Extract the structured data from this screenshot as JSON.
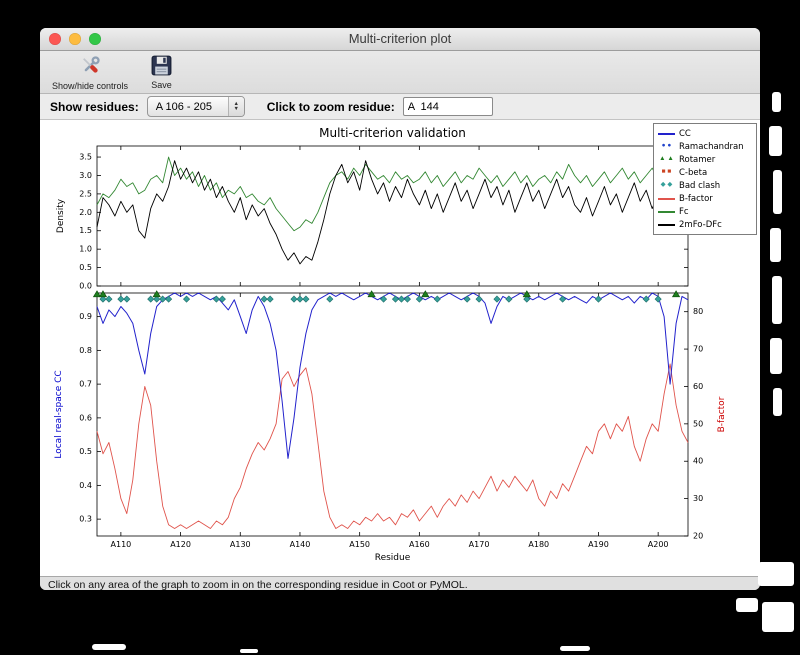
{
  "window": {
    "title": "Multi-criterion plot",
    "toolbar": {
      "show_hide_label": "Show/hide controls",
      "save_label": "Save"
    },
    "controls": {
      "show_residues_label": "Show residues:",
      "residue_range_value": "A 106 - 205",
      "zoom_residue_label": "Click to zoom residue:",
      "zoom_residue_value": "A  144"
    },
    "status_bar": "Click on any area of the graph to zoom in on the corresponding residue in Coot or PyMOL."
  },
  "chart_data": {
    "type": "line",
    "title": "Multi-criterion validation",
    "x_label": "Residue",
    "x_range": [
      106,
      205
    ],
    "x_ticks": [
      {
        "label": "A110",
        "residue": 110
      },
      {
        "label": "A120",
        "residue": 120
      },
      {
        "label": "A130",
        "residue": 130
      },
      {
        "label": "A140",
        "residue": 140
      },
      {
        "label": "A150",
        "residue": 150
      },
      {
        "label": "A160",
        "residue": 160
      },
      {
        "label": "A170",
        "residue": 170
      },
      {
        "label": "A180",
        "residue": 180
      },
      {
        "label": "A190",
        "residue": 190
      },
      {
        "label": "A200",
        "residue": 200
      }
    ],
    "top": {
      "y_label": "Density",
      "ylim": [
        0,
        3.8
      ],
      "y_ticks": [
        0.0,
        0.5,
        1.0,
        1.5,
        2.0,
        2.5,
        3.0,
        3.5
      ],
      "series": [
        {
          "name": "Fc",
          "color": "#338833",
          "values": [
            2.2,
            2.5,
            2.4,
            2.6,
            2.9,
            2.7,
            2.8,
            2.5,
            2.6,
            2.9,
            3.0,
            2.8,
            3.5,
            3.0,
            3.2,
            2.9,
            3.1,
            2.7,
            3.0,
            2.6,
            2.8,
            2.4,
            2.6,
            2.5,
            2.7,
            2.4,
            2.5,
            2.3,
            2.2,
            2.4,
            2.1,
            1.9,
            1.7,
            1.5,
            1.6,
            1.8,
            1.7,
            2.0,
            2.4,
            2.8,
            3.0,
            3.1,
            2.9,
            3.2,
            3.0,
            3.3,
            3.1,
            2.9,
            3.0,
            2.8,
            3.1,
            2.9,
            3.0,
            2.8,
            2.9,
            3.1,
            2.8,
            3.0,
            2.7,
            2.9,
            3.1,
            2.8,
            3.0,
            2.9,
            3.2,
            3.0,
            2.8,
            3.0,
            2.7,
            2.9,
            3.1,
            2.8,
            3.0,
            2.7,
            2.9,
            3.0,
            2.8,
            3.1,
            2.9,
            3.3,
            3.0,
            2.8,
            3.0,
            2.7,
            2.9,
            3.1,
            2.8,
            3.0,
            3.2,
            2.9,
            3.1,
            2.8,
            3.0,
            3.2,
            2.9,
            3.1,
            2.8,
            3.0,
            2.7,
            2.9
          ]
        },
        {
          "name": "2mFo-DFc",
          "color": "#000000",
          "values": [
            1.6,
            2.4,
            2.2,
            1.9,
            2.3,
            2.0,
            2.2,
            1.5,
            1.3,
            2.1,
            2.5,
            2.3,
            2.7,
            3.4,
            2.9,
            3.2,
            2.8,
            3.1,
            2.6,
            2.9,
            2.4,
            2.7,
            2.3,
            2.0,
            2.4,
            1.8,
            2.2,
            1.9,
            2.1,
            1.7,
            1.4,
            1.0,
            0.7,
            0.9,
            0.6,
            0.8,
            0.7,
            1.2,
            1.8,
            2.5,
            3.0,
            3.3,
            2.8,
            3.1,
            2.6,
            3.4,
            2.9,
            2.5,
            2.8,
            2.3,
            2.7,
            2.4,
            2.9,
            2.5,
            2.2,
            2.6,
            2.1,
            2.5,
            2.0,
            2.4,
            2.8,
            2.3,
            2.6,
            2.1,
            2.5,
            2.9,
            2.4,
            2.7,
            2.2,
            2.6,
            2.0,
            2.4,
            2.8,
            2.3,
            2.6,
            2.1,
            2.5,
            2.9,
            2.4,
            2.7,
            2.2,
            2.0,
            2.4,
            1.9,
            2.3,
            2.7,
            2.2,
            2.5,
            2.0,
            2.4,
            2.8,
            2.3,
            2.6,
            2.1,
            2.5,
            2.2,
            2.6,
            2.0,
            2.4,
            2.1
          ]
        }
      ]
    },
    "bottom": {
      "left_y_label": "Local real-space CC",
      "left_label_color": "#0000cc",
      "left_ylim": [
        0.25,
        0.97
      ],
      "left_y_ticks": [
        0.3,
        0.4,
        0.5,
        0.6,
        0.7,
        0.8,
        0.9
      ],
      "right_y_label": "B-factor",
      "right_label_color": "#cc0000",
      "right_ylim": [
        20,
        85
      ],
      "right_y_ticks": [
        20,
        30,
        40,
        50,
        60,
        70,
        80
      ],
      "cc": {
        "name": "CC",
        "color": "#2222cc",
        "values": [
          0.93,
          0.88,
          0.92,
          0.9,
          0.93,
          0.91,
          0.88,
          0.8,
          0.73,
          0.85,
          0.93,
          0.95,
          0.96,
          0.97,
          0.96,
          0.97,
          0.96,
          0.97,
          0.96,
          0.95,
          0.96,
          0.94,
          0.92,
          0.95,
          0.9,
          0.85,
          0.92,
          0.96,
          0.93,
          0.88,
          0.8,
          0.65,
          0.48,
          0.6,
          0.75,
          0.85,
          0.92,
          0.95,
          0.96,
          0.97,
          0.96,
          0.97,
          0.96,
          0.95,
          0.96,
          0.97,
          0.96,
          0.95,
          0.96,
          0.97,
          0.96,
          0.95,
          0.96,
          0.97,
          0.96,
          0.95,
          0.96,
          0.95,
          0.96,
          0.97,
          0.96,
          0.95,
          0.96,
          0.97,
          0.96,
          0.94,
          0.88,
          0.93,
          0.96,
          0.95,
          0.96,
          0.97,
          0.96,
          0.95,
          0.96,
          0.95,
          0.96,
          0.97,
          0.96,
          0.95,
          0.96,
          0.95,
          0.94,
          0.96,
          0.95,
          0.96,
          0.97,
          0.96,
          0.95,
          0.96,
          0.94,
          0.96,
          0.95,
          0.97,
          0.96,
          0.9,
          0.7,
          0.88,
          0.96,
          0.95
        ]
      },
      "bfactor": {
        "name": "B-factor",
        "color": "#e0544c",
        "values": [
          48,
          42,
          45,
          38,
          30,
          26,
          35,
          50,
          60,
          55,
          40,
          28,
          23,
          22,
          23,
          22,
          23,
          24,
          23,
          22,
          24,
          23,
          25,
          30,
          33,
          38,
          42,
          45,
          43,
          46,
          50,
          62,
          64,
          60,
          63,
          65,
          58,
          45,
          32,
          25,
          22,
          23,
          22,
          24,
          23,
          25,
          24,
          26,
          24,
          25,
          23,
          26,
          25,
          27,
          24,
          26,
          28,
          25,
          28,
          30,
          28,
          31,
          29,
          32,
          30,
          33,
          36,
          32,
          35,
          33,
          36,
          34,
          32,
          35,
          30,
          28,
          32,
          30,
          34,
          32,
          36,
          40,
          44,
          42,
          48,
          50,
          46,
          50,
          48,
          52,
          44,
          40,
          46,
          50,
          48,
          58,
          66,
          55,
          48,
          45
        ]
      },
      "markers": {
        "rotamer": {
          "color": "#1e7d1e",
          "residues": [
            106,
            107,
            116,
            152,
            161,
            178,
            203
          ]
        },
        "bad_clash": {
          "color": "#35a09a",
          "cc_level": 0.952,
          "residues": [
            107,
            108,
            110,
            111,
            115,
            116,
            117,
            118,
            121,
            126,
            127,
            134,
            135,
            139,
            140,
            141,
            145,
            154,
            156,
            157,
            158,
            160,
            163,
            168,
            170,
            173,
            175,
            178,
            184,
            190,
            198,
            200
          ]
        }
      }
    },
    "legend": [
      {
        "label": "CC",
        "type": "line",
        "color": "#2222cc"
      },
      {
        "label": "Ramachandran",
        "type": "circles",
        "color": "#2244cc"
      },
      {
        "label": "Rotamer",
        "type": "triangles",
        "color": "#1e7d1e"
      },
      {
        "label": "C-beta",
        "type": "squares",
        "color": "#cc4422"
      },
      {
        "label": "Bad clash",
        "type": "diamonds",
        "color": "#35a09a"
      },
      {
        "label": "B-factor",
        "type": "line",
        "color": "#e0544c"
      },
      {
        "label": "Fc",
        "type": "line",
        "color": "#338833"
      },
      {
        "label": "2mFo-DFc",
        "type": "line",
        "color": "#000000"
      }
    ]
  }
}
